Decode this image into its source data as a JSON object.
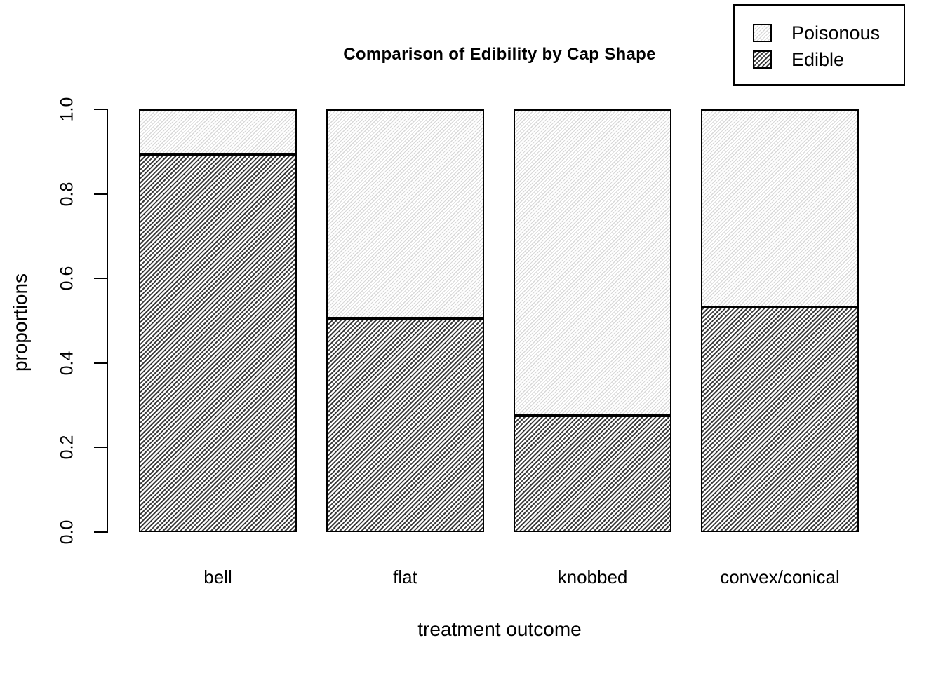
{
  "chart_data": {
    "type": "bar",
    "stacked": true,
    "title": "Comparison of Edibility by Cap Shape",
    "xlabel": "treatment outcome",
    "ylabel": "proportions",
    "categories": [
      "bell",
      "flat",
      "knobbed",
      "convex/conical"
    ],
    "series": [
      {
        "name": "Edible",
        "pattern": "dense-hatch",
        "values": [
          0.894,
          0.506,
          0.275,
          0.533
        ]
      },
      {
        "name": "Poisonous",
        "pattern": "light-hatch",
        "values": [
          0.106,
          0.494,
          0.725,
          0.467
        ]
      }
    ],
    "ylim": [
      0,
      1
    ],
    "yticks": [
      0.0,
      0.2,
      0.4,
      0.6,
      0.8,
      1.0
    ],
    "ytick_labels": [
      "0.0",
      "0.2",
      "0.4",
      "0.6",
      "0.8",
      "1.0"
    ],
    "grid": false,
    "legend": {
      "position": "top-right",
      "entries": [
        {
          "label": "Poisonous",
          "pattern": "light-hatch"
        },
        {
          "label": "Edible",
          "pattern": "dense-hatch"
        }
      ]
    },
    "colors": {
      "background": "#ffffff",
      "text": "#000000",
      "bar_border": "#000000",
      "light_hatch_line": "#d8d8d8",
      "dense_hatch_line": "#3d3d3d"
    }
  }
}
